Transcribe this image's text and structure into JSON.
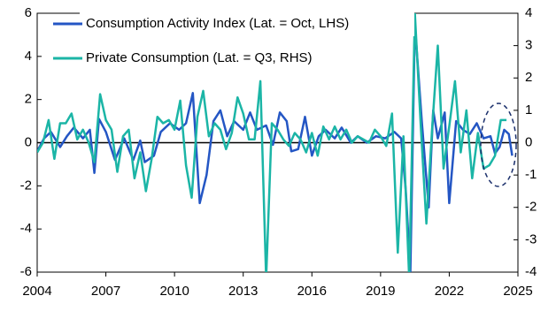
{
  "chart_data": {
    "type": "line",
    "xlim": [
      2004,
      2025
    ],
    "xticks": [
      2004,
      2007,
      2010,
      2013,
      2016,
      2019,
      2022,
      2025
    ],
    "ylim": [
      -6,
      6
    ],
    "yticks": [
      -6,
      -4,
      -2,
      0,
      2,
      4,
      6
    ],
    "y2lim": [
      -4,
      4
    ],
    "y2ticks": [
      -4,
      -3,
      -2,
      -1,
      0,
      1,
      2,
      3,
      4
    ],
    "series": [
      {
        "name": "Consumption Activity Index (Lat. = Oct, LHS)",
        "color": "#2456c4",
        "x": [
          2004.0,
          2004.3,
          2004.6,
          2005.0,
          2005.3,
          2005.6,
          2006.0,
          2006.3,
          2006.5,
          2006.7,
          2007.0,
          2007.4,
          2007.8,
          2008.2,
          2008.5,
          2008.7,
          2009.1,
          2009.4,
          2009.8,
          2010.2,
          2010.5,
          2010.8,
          2011.1,
          2011.4,
          2011.7,
          2012.0,
          2012.3,
          2012.6,
          2013.0,
          2013.3,
          2013.6,
          2014.0,
          2014.3,
          2014.6,
          2014.9,
          2015.1,
          2015.4,
          2015.7,
          2016.0,
          2016.3,
          2016.6,
          2017.0,
          2017.3,
          2017.7,
          2018.0,
          2018.4,
          2018.8,
          2019.2,
          2019.6,
          2019.9,
          2020.1,
          2020.3,
          2020.5,
          2020.8,
          2021.1,
          2021.3,
          2021.5,
          2021.8,
          2022.0,
          2022.3,
          2022.6,
          2022.9,
          2023.2,
          2023.5,
          2023.8,
          2024.0,
          2024.2,
          2024.4,
          2024.6,
          2024.75
        ],
        "values": [
          -0.4,
          0.2,
          0.5,
          -0.2,
          0.3,
          0.7,
          0.2,
          0.6,
          -1.4,
          1.1,
          0.5,
          -0.8,
          0.2,
          -0.8,
          0.1,
          -0.9,
          -0.6,
          0.5,
          0.9,
          0.6,
          0.9,
          2.3,
          -2.8,
          -1.5,
          1.0,
          1.5,
          0.3,
          1.0,
          0.6,
          1.4,
          0.6,
          0.8,
          -0.1,
          1.4,
          1.0,
          -0.4,
          -0.3,
          1.2,
          -0.6,
          0.3,
          0.6,
          0.2,
          0.7,
          0.0,
          0.3,
          0.0,
          0.3,
          0.2,
          0.5,
          0.2,
          -2.2,
          -6,
          5.5,
          1.0,
          -3.0,
          1.5,
          0.2,
          1.4,
          -2.8,
          1.0,
          0.6,
          0.4,
          0.9,
          0.2,
          0.3,
          -0.5,
          -0.2,
          0.6,
          0.4,
          -0.6
        ]
      },
      {
        "name": "Private Consumption (Lat. = Q3, RHS)",
        "color": "#1bb5a6",
        "axis": "y2",
        "x": [
          2004.0,
          2004.25,
          2004.5,
          2004.75,
          2005.0,
          2005.25,
          2005.5,
          2005.75,
          2006.0,
          2006.25,
          2006.5,
          2006.75,
          2007.0,
          2007.25,
          2007.5,
          2007.75,
          2008.0,
          2008.25,
          2008.5,
          2008.75,
          2009.0,
          2009.25,
          2009.5,
          2009.75,
          2010.0,
          2010.25,
          2010.5,
          2010.75,
          2011.0,
          2011.25,
          2011.5,
          2011.75,
          2012.0,
          2012.25,
          2012.5,
          2012.75,
          2013.0,
          2013.25,
          2013.5,
          2013.75,
          2014.0,
          2014.25,
          2014.5,
          2014.75,
          2015.0,
          2015.25,
          2015.5,
          2015.75,
          2016.0,
          2016.25,
          2016.5,
          2016.75,
          2017.0,
          2017.25,
          2017.5,
          2017.75,
          2018.0,
          2018.25,
          2018.5,
          2018.75,
          2019.0,
          2019.25,
          2019.5,
          2019.75,
          2020.0,
          2020.25,
          2020.5,
          2020.75,
          2021.0,
          2021.25,
          2021.5,
          2021.75,
          2022.0,
          2022.25,
          2022.5,
          2022.75,
          2023.0,
          2023.25,
          2023.5,
          2023.75,
          2024.0,
          2024.25,
          2024.5
        ],
        "values": [
          -0.3,
          0.0,
          0.7,
          -0.5,
          0.6,
          0.6,
          0.9,
          0.1,
          0.4,
          0.0,
          -0.6,
          1.5,
          0.7,
          0.4,
          -0.9,
          0.2,
          0.4,
          -1.1,
          -0.3,
          -1.5,
          -0.5,
          0.8,
          0.6,
          0.7,
          0.4,
          1.3,
          -0.7,
          -1.7,
          0.8,
          1.6,
          0.2,
          0.6,
          0.4,
          -0.2,
          0.3,
          1.4,
          0.9,
          0.1,
          0.1,
          1.9,
          -4.2,
          0.6,
          0.4,
          0.1,
          -0.1,
          0.3,
          0.1,
          -0.3,
          0.3,
          -0.4,
          0.5,
          0.1,
          0.5,
          0.1,
          0.4,
          0.0,
          0.2,
          0.1,
          0.0,
          0.4,
          0.2,
          -0.1,
          0.9,
          -3.4,
          0.2,
          -4.2,
          4.0,
          0.6,
          -2.5,
          0.4,
          3.0,
          -0.8,
          0.5,
          1.9,
          -0.3,
          1.0,
          -1.1,
          0.3,
          -0.8,
          -0.7,
          -0.4,
          0.7,
          0.7
        ]
      }
    ]
  }
}
